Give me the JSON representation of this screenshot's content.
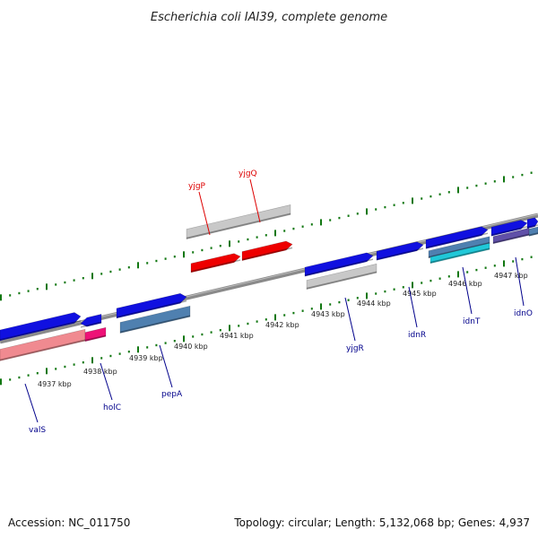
{
  "title": "Escherichia coli IAI39, complete genome",
  "footer": {
    "accession": "Accession: NC_011750",
    "stats": "Topology: circular; Length: 5,132,068 bp; Genes: 4,937"
  },
  "colors": {
    "plus_gene": "#1010e0",
    "minus_gene": "#ee0000",
    "gray_gene": "#c8c8c8",
    "steel_gene": "#4f80b0",
    "pink_gene": "#f08a90",
    "magenta_gene": "#ee1177",
    "cyan_gene": "#20c8d8",
    "purple_gene": "#6050a8",
    "label_blue": "#00008b",
    "label_red": "#dd0000",
    "tick_green": "#117711",
    "backbone": "#8a8a8a"
  },
  "kbp_ticks": [
    {
      "label": "4937 kbp"
    },
    {
      "label": "4938 kbp"
    },
    {
      "label": "4939 kbp"
    },
    {
      "label": "4940 kbp"
    },
    {
      "label": "4941 kbp"
    },
    {
      "label": "4942 kbp"
    },
    {
      "label": "4943 kbp"
    },
    {
      "label": "4944 kbp"
    },
    {
      "label": "4945 kbp"
    },
    {
      "label": "4946 kbp"
    },
    {
      "label": "4947 kbp"
    }
  ],
  "gene_labels": [
    {
      "name": "yjgP",
      "color": "red"
    },
    {
      "name": "yjgQ",
      "color": "red"
    },
    {
      "name": "valS",
      "color": "blue"
    },
    {
      "name": "holC",
      "color": "blue"
    },
    {
      "name": "pepA",
      "color": "blue"
    },
    {
      "name": "yjgR",
      "color": "blue"
    },
    {
      "name": "idnR",
      "color": "blue"
    },
    {
      "name": "idnT",
      "color": "blue"
    },
    {
      "name": "idnO",
      "color": "blue"
    }
  ]
}
